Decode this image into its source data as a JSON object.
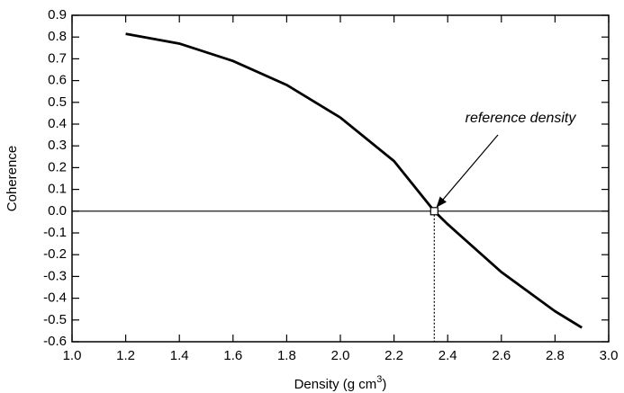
{
  "chart_data": {
    "type": "line",
    "x_label": "Density (g cm",
    "x_label_sup": "3",
    "x_label_end": ")",
    "y_label": "Coherence",
    "annotation": "reference density",
    "series": [
      {
        "color": "#000000",
        "x": [
          1.2,
          1.4,
          1.6,
          1.8,
          2.0,
          2.2,
          2.35,
          2.4,
          2.6,
          2.8,
          2.9
        ],
        "values": [
          0.815,
          0.77,
          0.69,
          0.58,
          0.43,
          0.23,
          0.0,
          -0.06,
          -0.28,
          -0.46,
          -0.535
        ]
      }
    ],
    "reference": {
      "x": 2.35,
      "y": 0
    },
    "xlim": [
      1.0,
      3.0
    ],
    "ylim": [
      -0.6,
      0.9
    ],
    "xticks": [
      {
        "value": 1.0,
        "label": "1.0"
      },
      1.2,
      1.4,
      1.6,
      1.8,
      {
        "value": 2.0,
        "label": "2.0"
      },
      2.2,
      2.4,
      2.6,
      2.8,
      {
        "value": 3.0,
        "label": "3.0"
      }
    ],
    "yticks": [
      -0.6,
      -0.5,
      -0.4,
      -0.3,
      -0.2,
      -0.1,
      {
        "value": 0.0,
        "label": "0.0"
      },
      0.1,
      0.2,
      0.3,
      0.4,
      0.5,
      0.6,
      0.7,
      0.8,
      0.9
    ]
  }
}
